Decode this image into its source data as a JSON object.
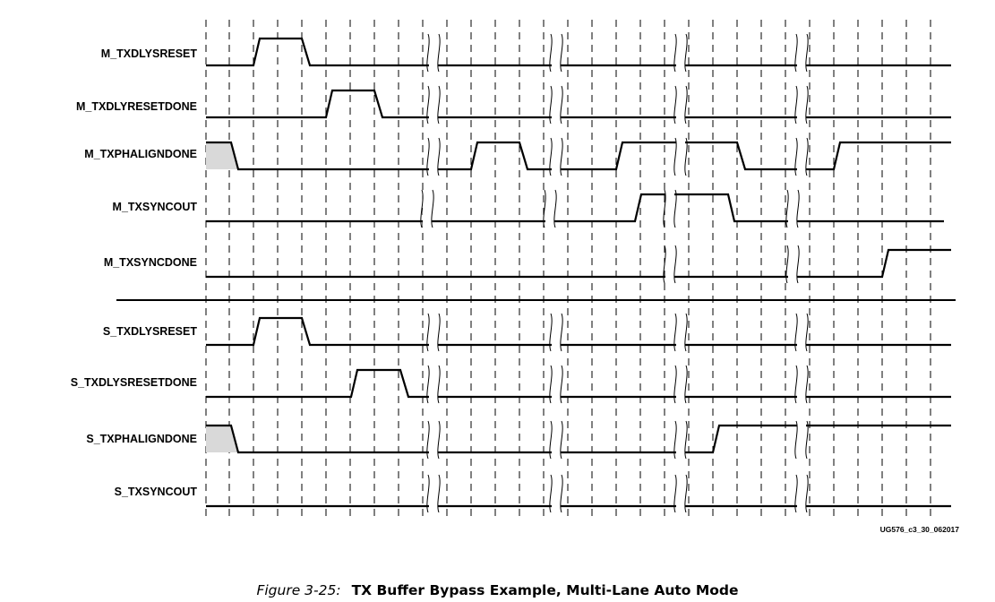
{
  "figure": {
    "caption_label": "Figure 3-25:",
    "caption_title": "TX Buffer Bypass Example, Multi-Lane Auto Mode",
    "figure_id": "UG576_c3_30_062017"
  },
  "signals": [
    {
      "name": "M_TXDLYSRESET"
    },
    {
      "name": "M_TXDLYRESETDONE"
    },
    {
      "name": "M_TXPHALIGNDONE"
    },
    {
      "name": "M_TXSYNCOUT"
    },
    {
      "name": "M_TXSYNCDONE"
    },
    {
      "name": "S_TXDLYSRESET"
    },
    {
      "name": "S_TXDLYSRESETDONE"
    },
    {
      "name": "S_TXPHALIGNDONE"
    },
    {
      "name": "S_TXSYNCOUT"
    }
  ]
}
